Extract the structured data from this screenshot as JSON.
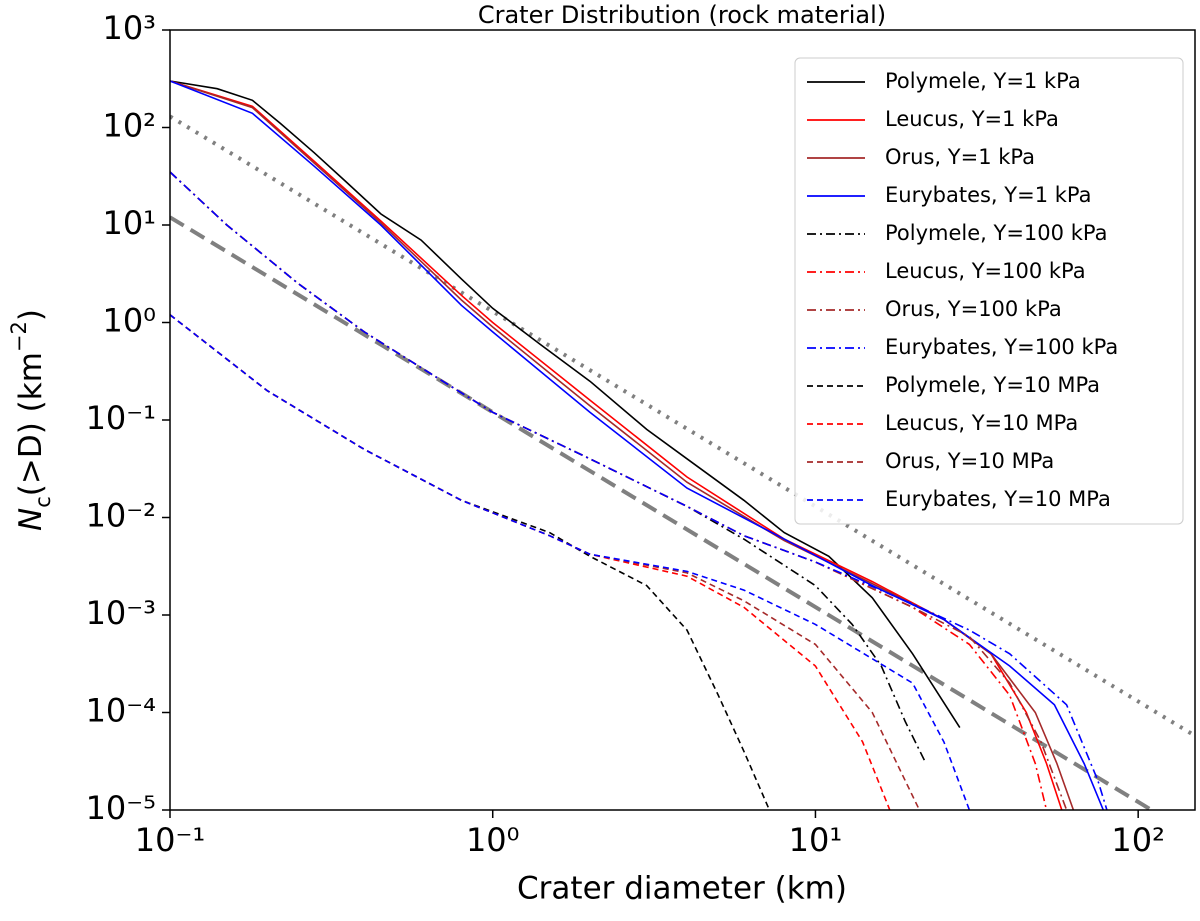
{
  "chart_data": {
    "type": "line",
    "title": "Crater Distribution (rock material)",
    "xlabel": "Crater diameter (km)",
    "ylabel": [
      "N",
      "c",
      "(>D) (km",
      "−2",
      ")"
    ],
    "log_x": true,
    "log_y": true,
    "xlim": [
      0.1,
      150
    ],
    "ylim": [
      1e-05,
      1000
    ],
    "xticks": [
      {
        "value": 0.1,
        "label": "10⁻¹"
      },
      {
        "value": 1,
        "label": "10⁰"
      },
      {
        "value": 10,
        "label": "10¹"
      },
      {
        "value": 100,
        "label": "10²"
      }
    ],
    "yticks": [
      {
        "value": 1e-05,
        "label": "10⁻⁵"
      },
      {
        "value": 0.0001,
        "label": "10⁻⁴"
      },
      {
        "value": 0.001,
        "label": "10⁻³"
      },
      {
        "value": 0.01,
        "label": "10⁻²"
      },
      {
        "value": 0.1,
        "label": "10⁻¹"
      },
      {
        "value": 1,
        "label": "10⁰"
      },
      {
        "value": 10,
        "label": "10¹"
      },
      {
        "value": 100,
        "label": "10²"
      },
      {
        "value": 1000,
        "label": "10³"
      }
    ],
    "legend": "upper right",
    "series": [
      {
        "name": "Polymele, Y=1 kPa",
        "color": "#000000",
        "style": "solid",
        "x": [
          0.1,
          0.14,
          0.18,
          0.22,
          0.28,
          0.35,
          0.45,
          0.6,
          0.8,
          1,
          1.4,
          2,
          3,
          4,
          6,
          8,
          11,
          15,
          20,
          28
        ],
        "values": [
          300,
          250,
          190,
          110,
          55,
          28,
          13,
          7,
          2.8,
          1.4,
          0.6,
          0.25,
          0.08,
          0.04,
          0.015,
          0.007,
          0.004,
          0.0015,
          0.0004,
          7e-05
        ]
      },
      {
        "name": "Leucus, Y=1 kPa",
        "color": "#ff0000",
        "style": "solid",
        "x": [
          0.1,
          0.18,
          0.28,
          0.45,
          0.8,
          1,
          2,
          4,
          8,
          15,
          25,
          35,
          45,
          52,
          58
        ],
        "values": [
          300,
          165,
          45,
          11,
          1.9,
          1.0,
          0.16,
          0.026,
          0.006,
          0.0022,
          0.0009,
          0.0004,
          0.0001,
          3e-05,
          1e-05
        ]
      },
      {
        "name": "Orus, Y=1 kPa",
        "color": "#a52a2a",
        "style": "solid",
        "x": [
          0.1,
          0.18,
          0.28,
          0.45,
          0.8,
          1,
          2,
          4,
          8,
          15,
          25,
          35,
          48,
          56,
          63
        ],
        "values": [
          300,
          160,
          43,
          10.5,
          1.7,
          0.9,
          0.14,
          0.023,
          0.0058,
          0.0021,
          0.0009,
          0.0004,
          0.0001,
          3e-05,
          1e-05
        ]
      },
      {
        "name": "Eurybates, Y=1 kPa",
        "color": "#0000ff",
        "style": "solid",
        "x": [
          0.1,
          0.18,
          0.28,
          0.45,
          0.8,
          1,
          2,
          4,
          8,
          15,
          25,
          40,
          55,
          68,
          78
        ],
        "values": [
          300,
          140,
          40,
          10,
          1.5,
          0.8,
          0.12,
          0.02,
          0.006,
          0.002,
          0.0009,
          0.0003,
          0.00012,
          3e-05,
          1e-05
        ]
      },
      {
        "name": "Polymele, Y=100 kPa",
        "color": "#000000",
        "style": "dashdot",
        "x": [
          0.1,
          0.15,
          0.25,
          0.4,
          0.7,
          1,
          2,
          4,
          6,
          10,
          13,
          16,
          19,
          22
        ],
        "values": [
          35,
          10,
          2.5,
          0.8,
          0.25,
          0.12,
          0.04,
          0.013,
          0.006,
          0.002,
          0.0008,
          0.0003,
          8e-05,
          3e-05
        ]
      },
      {
        "name": "Leucus, Y=100 kPa",
        "color": "#ff0000",
        "style": "dashdot",
        "x": [
          0.1,
          0.15,
          0.25,
          0.4,
          0.7,
          1,
          2,
          4,
          6,
          10,
          20,
          30,
          40,
          48,
          52
        ],
        "values": [
          35,
          10,
          2.5,
          0.8,
          0.25,
          0.12,
          0.04,
          0.013,
          0.0065,
          0.0035,
          0.0012,
          0.0005,
          0.00015,
          3e-05,
          1e-05
        ]
      },
      {
        "name": "Orus, Y=100 kPa",
        "color": "#a52a2a",
        "style": "dashdot",
        "x": [
          0.1,
          0.15,
          0.25,
          0.4,
          0.7,
          1,
          2,
          4,
          6,
          10,
          20,
          30,
          40,
          50,
          60
        ],
        "values": [
          35,
          10,
          2.5,
          0.8,
          0.25,
          0.12,
          0.04,
          0.013,
          0.0065,
          0.0035,
          0.0012,
          0.0006,
          0.0002,
          5e-05,
          1e-05
        ]
      },
      {
        "name": "Eurybates, Y=100 kPa",
        "color": "#0000ff",
        "style": "dashdot",
        "x": [
          0.1,
          0.15,
          0.25,
          0.4,
          0.7,
          1,
          2,
          4,
          6,
          10,
          20,
          30,
          40,
          60,
          75,
          80
        ],
        "values": [
          35,
          10,
          2.5,
          0.8,
          0.25,
          0.12,
          0.04,
          0.013,
          0.0065,
          0.0035,
          0.0013,
          0.0007,
          0.0004,
          0.00012,
          2e-05,
          1e-05
        ]
      },
      {
        "name": "Polymele, Y=10 MPa",
        "color": "#000000",
        "style": "dashed",
        "x": [
          0.1,
          0.2,
          0.4,
          0.8,
          1.5,
          2,
          3,
          4,
          5,
          6,
          7.2
        ],
        "values": [
          1.2,
          0.2,
          0.05,
          0.015,
          0.007,
          0.004,
          0.002,
          0.0007,
          0.00015,
          4e-05,
          1e-05
        ]
      },
      {
        "name": "Leucus, Y=10 MPa",
        "color": "#ff0000",
        "style": "dashed",
        "x": [
          0.1,
          0.2,
          0.4,
          0.8,
          1.5,
          2,
          4,
          6,
          10,
          14,
          17
        ],
        "values": [
          1.2,
          0.2,
          0.05,
          0.015,
          0.0065,
          0.0042,
          0.0025,
          0.0012,
          0.0003,
          5e-05,
          1e-05
        ]
      },
      {
        "name": "Orus, Y=10 MPa",
        "color": "#a52a2a",
        "style": "dashed",
        "x": [
          0.1,
          0.2,
          0.4,
          0.8,
          1.5,
          2,
          4,
          6,
          10,
          15,
          21
        ],
        "values": [
          1.2,
          0.2,
          0.05,
          0.015,
          0.0065,
          0.0042,
          0.0027,
          0.0014,
          0.0005,
          0.0001,
          1e-05
        ]
      },
      {
        "name": "Eurybates, Y=10 MPa",
        "color": "#0000ff",
        "style": "dashed",
        "x": [
          0.1,
          0.2,
          0.4,
          0.8,
          1.5,
          2,
          4,
          6,
          10,
          20,
          25,
          30
        ],
        "values": [
          1.2,
          0.2,
          0.05,
          0.015,
          0.0065,
          0.0042,
          0.0028,
          0.0018,
          0.0008,
          0.0002,
          5e-05,
          1e-05
        ]
      }
    ],
    "reference_lines": [
      {
        "color": "#808080",
        "style": "dotted",
        "x": [
          0.1,
          200
        ],
        "values": [
          130,
          3.25e-05
        ]
      },
      {
        "color": "#808080",
        "style": "longdash",
        "x": [
          0.1,
          110
        ],
        "values": [
          12,
          1e-05
        ]
      }
    ]
  }
}
